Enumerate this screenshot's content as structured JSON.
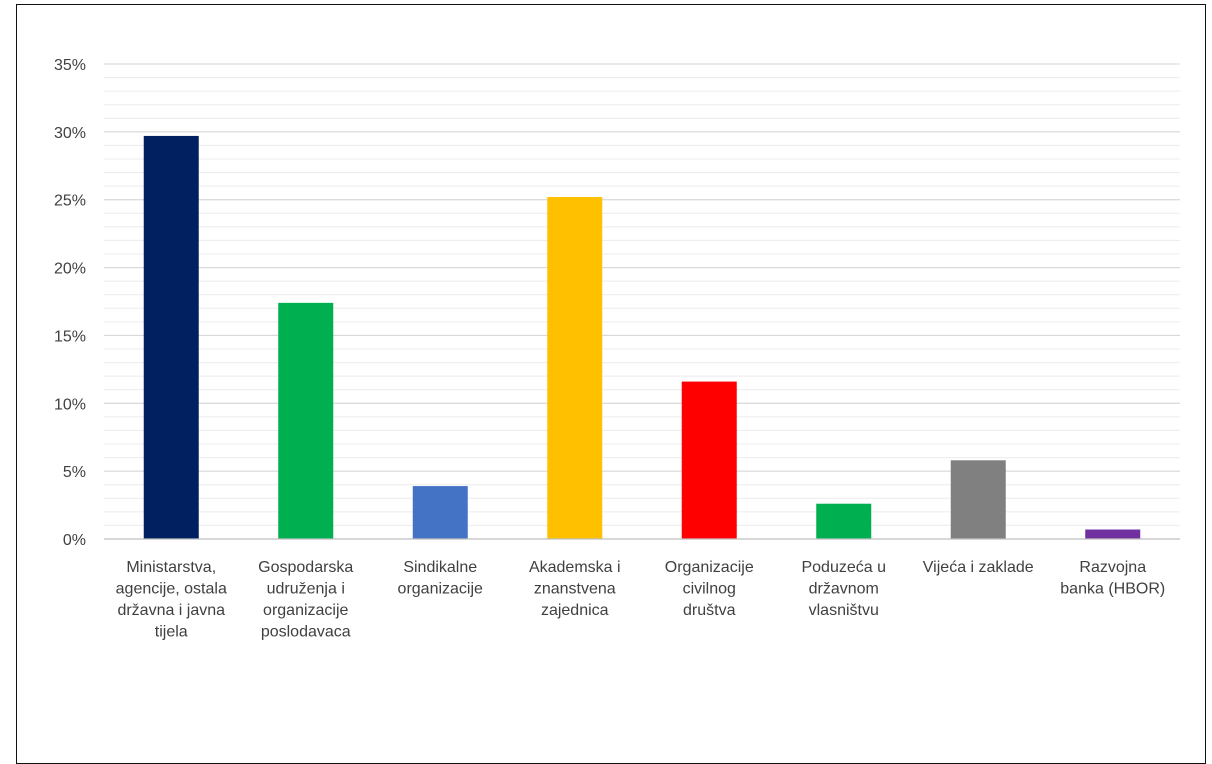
{
  "chart_data": {
    "type": "bar",
    "title": "",
    "xlabel": "",
    "ylabel": "",
    "ylim": [
      0,
      0.35
    ],
    "y_tick_step": 0.05,
    "y_minor_step": 0.01,
    "y_format": "percent",
    "grid": true,
    "legend": "none",
    "categories": [
      [
        "Ministarstva,",
        "agencije, ostala",
        "državna i javna",
        "tijela"
      ],
      [
        "Gospodarska",
        "udruženja i",
        "organizacije",
        "poslodavaca"
      ],
      [
        "Sindikalne",
        "organizacije"
      ],
      [
        "Akademska i",
        "znanstvena",
        "zajednica"
      ],
      [
        "Organizacije",
        "civilnog",
        "društva"
      ],
      [
        "Poduzeća u",
        "državnom",
        "vlasništvu"
      ],
      [
        "Vijeća i zaklade"
      ],
      [
        "Razvojna",
        "banka (HBOR)"
      ]
    ],
    "values": [
      0.297,
      0.174,
      0.039,
      0.252,
      0.116,
      0.026,
      0.058,
      0.007
    ],
    "colors": [
      "#002060",
      "#00B050",
      "#4472C4",
      "#FFC000",
      "#FF0000",
      "#00B050",
      "#808080",
      "#7030A0"
    ]
  }
}
